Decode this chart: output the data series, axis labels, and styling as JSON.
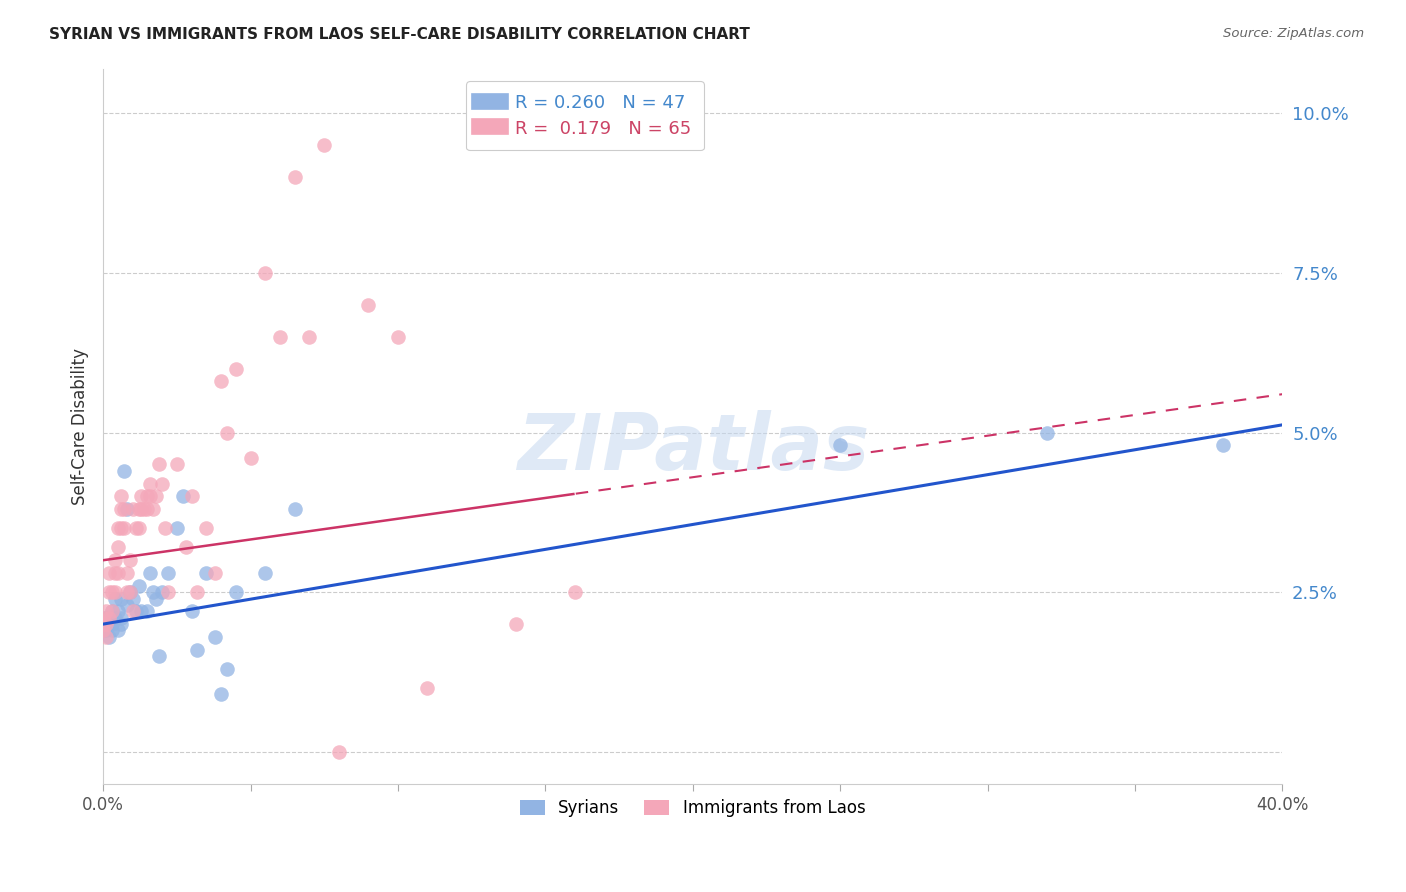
{
  "title": "SYRIAN VS IMMIGRANTS FROM LAOS SELF-CARE DISABILITY CORRELATION CHART",
  "source": "Source: ZipAtlas.com",
  "ylabel": "Self-Care Disability",
  "xlim": [
    0.0,
    0.4
  ],
  "ylim": [
    -0.005,
    0.107
  ],
  "xticks": [
    0.0,
    0.05,
    0.1,
    0.15,
    0.2,
    0.25,
    0.3,
    0.35,
    0.4
  ],
  "yticks": [
    0.0,
    0.025,
    0.05,
    0.075,
    0.1
  ],
  "ytick_labels": [
    "",
    "2.5%",
    "5.0%",
    "7.5%",
    "10.0%"
  ],
  "xtick_labels": [
    "0.0%",
    "",
    "",
    "",
    "",
    "",
    "",
    "",
    "40.0%"
  ],
  "blue_R": 0.26,
  "blue_N": 47,
  "pink_R": 0.179,
  "pink_N": 65,
  "blue_color": "#92b4e3",
  "pink_color": "#f4a7b9",
  "blue_line_color": "#2255cc",
  "pink_line_color": "#cc3366",
  "blue_points_x": [
    0.0,
    0.0,
    0.001,
    0.001,
    0.001,
    0.002,
    0.002,
    0.002,
    0.003,
    0.003,
    0.003,
    0.004,
    0.004,
    0.005,
    0.005,
    0.006,
    0.006,
    0.006,
    0.007,
    0.008,
    0.008,
    0.009,
    0.01,
    0.011,
    0.012,
    0.013,
    0.015,
    0.016,
    0.017,
    0.018,
    0.019,
    0.02,
    0.022,
    0.025,
    0.027,
    0.03,
    0.032,
    0.035,
    0.038,
    0.04,
    0.042,
    0.045,
    0.055,
    0.065,
    0.25,
    0.32,
    0.38
  ],
  "blue_points_y": [
    0.019,
    0.021,
    0.02,
    0.021,
    0.019,
    0.021,
    0.02,
    0.018,
    0.022,
    0.02,
    0.019,
    0.024,
    0.021,
    0.022,
    0.019,
    0.024,
    0.021,
    0.02,
    0.044,
    0.023,
    0.038,
    0.025,
    0.024,
    0.022,
    0.026,
    0.022,
    0.022,
    0.028,
    0.025,
    0.024,
    0.015,
    0.025,
    0.028,
    0.035,
    0.04,
    0.022,
    0.016,
    0.028,
    0.018,
    0.009,
    0.013,
    0.025,
    0.028,
    0.038,
    0.048,
    0.05,
    0.048
  ],
  "pink_points_x": [
    0.0,
    0.0,
    0.0,
    0.001,
    0.001,
    0.001,
    0.002,
    0.002,
    0.002,
    0.003,
    0.003,
    0.004,
    0.004,
    0.004,
    0.005,
    0.005,
    0.005,
    0.006,
    0.006,
    0.006,
    0.007,
    0.007,
    0.008,
    0.008,
    0.009,
    0.009,
    0.01,
    0.01,
    0.011,
    0.012,
    0.012,
    0.013,
    0.013,
    0.014,
    0.015,
    0.015,
    0.016,
    0.016,
    0.017,
    0.018,
    0.019,
    0.02,
    0.021,
    0.022,
    0.025,
    0.028,
    0.03,
    0.032,
    0.035,
    0.038,
    0.04,
    0.042,
    0.045,
    0.05,
    0.055,
    0.06,
    0.065,
    0.07,
    0.075,
    0.08,
    0.09,
    0.1,
    0.11,
    0.14,
    0.16
  ],
  "pink_points_y": [
    0.02,
    0.021,
    0.019,
    0.022,
    0.02,
    0.018,
    0.021,
    0.028,
    0.025,
    0.025,
    0.022,
    0.03,
    0.025,
    0.028,
    0.028,
    0.032,
    0.035,
    0.04,
    0.035,
    0.038,
    0.038,
    0.035,
    0.025,
    0.028,
    0.03,
    0.025,
    0.022,
    0.038,
    0.035,
    0.038,
    0.035,
    0.038,
    0.04,
    0.038,
    0.04,
    0.038,
    0.04,
    0.042,
    0.038,
    0.04,
    0.045,
    0.042,
    0.035,
    0.025,
    0.045,
    0.032,
    0.04,
    0.025,
    0.035,
    0.028,
    0.058,
    0.05,
    0.06,
    0.046,
    0.075,
    0.065,
    0.09,
    0.065,
    0.095,
    0.0,
    0.07,
    0.065,
    0.01,
    0.02,
    0.025
  ]
}
